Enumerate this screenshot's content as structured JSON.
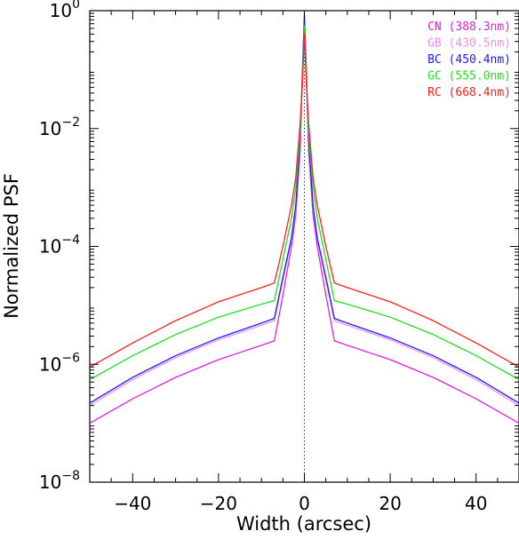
{
  "chart_data": {
    "type": "line",
    "title": "",
    "xlabel": "Width (arcsec)",
    "ylabel": "Normalized PSF",
    "xlim": [
      -50,
      50
    ],
    "ylim": [
      1e-08,
      1
    ],
    "y_scale": "log",
    "grid": false,
    "legend_position": "top-right",
    "x_ticks": [
      -40,
      -20,
      0,
      20,
      40
    ],
    "x_tick_labels": [
      "−40",
      "−20",
      "0",
      "20",
      "40"
    ],
    "y_ticks": [
      {
        "value": 1e-08,
        "base": "10",
        "exp": "−8"
      },
      {
        "value": 1e-06,
        "base": "10",
        "exp": "−6"
      },
      {
        "value": 0.0001,
        "base": "10",
        "exp": "−4"
      },
      {
        "value": 0.01,
        "base": "10",
        "exp": "−2"
      },
      {
        "value": 1,
        "base": "10",
        "exp": "0"
      }
    ],
    "reference_line": {
      "x": 0,
      "style": "dotted"
    },
    "series": [
      {
        "name": "CN (388.3nm)",
        "color": "#e020e0",
        "x": [
          -50,
          -40,
          -30,
          -20,
          -10,
          -7,
          -5,
          -3,
          -2,
          -1,
          -0.5,
          0,
          0.5,
          1,
          2,
          3,
          5,
          7,
          10,
          20,
          30,
          40,
          50
        ],
        "y": [
          1e-07,
          2.6e-07,
          6e-07,
          1.2e-06,
          2.1e-06,
          2.5e-06,
          1.5e-05,
          0.0001,
          0.00035,
          0.004,
          0.06,
          0.9,
          0.06,
          0.004,
          0.00035,
          0.0001,
          1.5e-05,
          2.5e-06,
          2.1e-06,
          1.2e-06,
          6e-07,
          2.6e-07,
          1e-07
        ]
      },
      {
        "name": "GB (430.5nm)",
        "color": "#f08cf0",
        "x": [
          -50,
          -40,
          -30,
          -20,
          -10,
          -7,
          -5,
          -3,
          -2,
          -1,
          -0.5,
          0,
          0.5,
          1,
          2,
          3,
          5,
          7,
          10,
          20,
          30,
          40,
          50
        ],
        "y": [
          2e-07,
          5.5e-07,
          1.3e-06,
          2.6e-06,
          4.6e-06,
          5.5e-06,
          2.7e-05,
          0.00013,
          0.00045,
          0.005,
          0.07,
          0.85,
          0.07,
          0.005,
          0.00045,
          0.00013,
          2.7e-05,
          5.5e-06,
          4.6e-06,
          2.6e-06,
          1.3e-06,
          5.5e-07,
          2e-07
        ]
      },
      {
        "name": "BC (450.4nm)",
        "color": "#1a1aff",
        "x": [
          -50,
          -40,
          -30,
          -20,
          -10,
          -7,
          -5,
          -3,
          -2,
          -1,
          -0.5,
          0,
          0.5,
          1,
          2,
          3,
          5,
          7,
          10,
          20,
          30,
          40,
          50
        ],
        "y": [
          2.2e-07,
          6e-07,
          1.4e-06,
          2.8e-06,
          5e-06,
          6e-06,
          3e-05,
          0.00014,
          0.0005,
          0.006,
          0.075,
          0.8,
          0.075,
          0.006,
          0.0005,
          0.00014,
          3e-05,
          6e-06,
          5e-06,
          2.8e-06,
          1.4e-06,
          6e-07,
          2.2e-07
        ]
      },
      {
        "name": "GC (555.0nm)",
        "color": "#20e020",
        "x": [
          -50,
          -40,
          -30,
          -20,
          -10,
          -7,
          -5,
          -3,
          -2,
          -1,
          -0.5,
          0,
          0.5,
          1,
          2,
          3,
          5,
          7,
          10,
          20,
          30,
          40,
          50
        ],
        "y": [
          5.5e-07,
          1.4e-06,
          3.2e-06,
          6.3e-06,
          1.05e-05,
          1.2e-05,
          6e-05,
          0.0003,
          0.001,
          0.008,
          0.06,
          0.55,
          0.06,
          0.008,
          0.001,
          0.0003,
          6e-05,
          1.2e-05,
          1.05e-05,
          6.3e-06,
          3.2e-06,
          1.4e-06,
          5.5e-07
        ]
      },
      {
        "name": "RC (668.4nm)",
        "color": "#ff2020",
        "x": [
          -50,
          -40,
          -30,
          -20,
          -10,
          -7,
          -5,
          -3,
          -2,
          -1,
          -0.5,
          0,
          0.5,
          1,
          2,
          3,
          5,
          7,
          10,
          20,
          30,
          40,
          50
        ],
        "y": [
          9e-07,
          2.3e-06,
          5.5e-06,
          1.15e-05,
          2e-05,
          2.4e-05,
          0.0001,
          0.0005,
          0.0015,
          0.012,
          0.05,
          0.4,
          0.05,
          0.012,
          0.0015,
          0.0005,
          0.0001,
          2.4e-05,
          2e-05,
          1.15e-05,
          5.5e-06,
          2.3e-06,
          9e-07
        ]
      }
    ]
  }
}
